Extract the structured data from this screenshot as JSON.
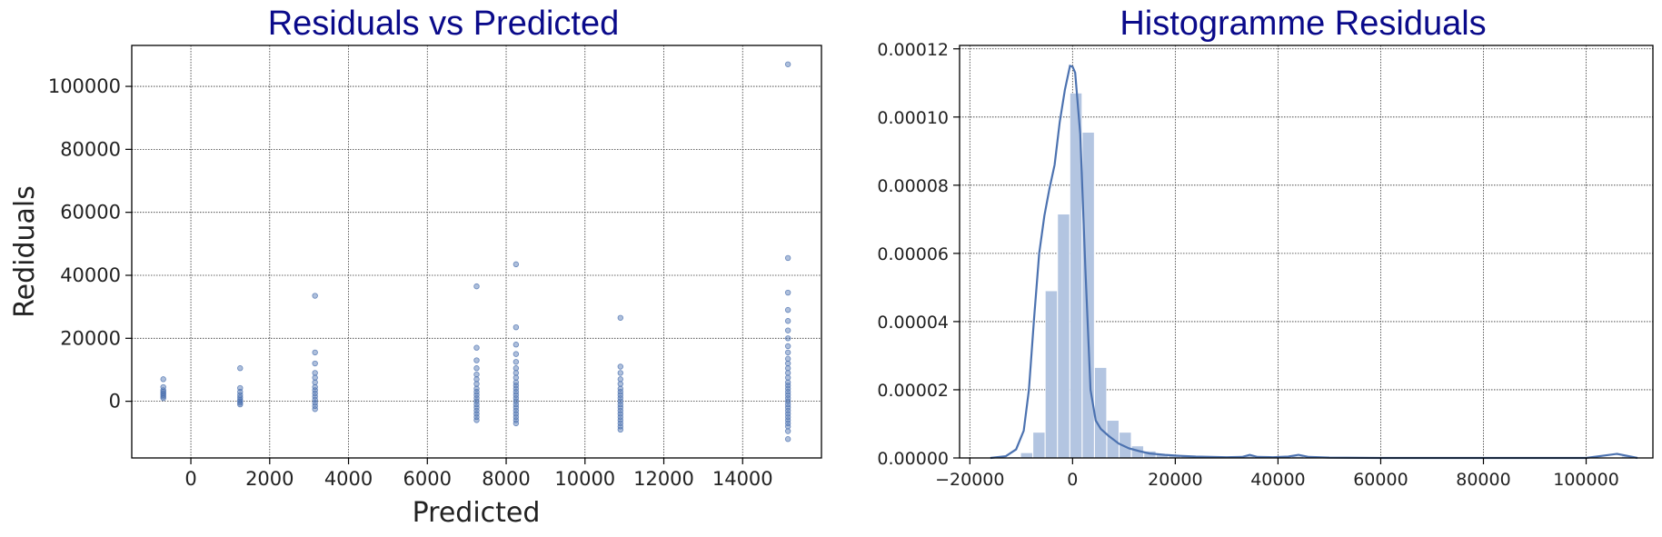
{
  "colors": {
    "title": "#0a0a8a",
    "series": "#4c72b0",
    "hist_fill": "#b3c5e1",
    "grid": "#333333",
    "axis": "#000000"
  },
  "chart_data": [
    {
      "type": "scatter",
      "title": "Residuals vs Predicted",
      "xlabel": "Predicted",
      "ylabel": "Rediduals",
      "xlim": [
        -1500,
        16000
      ],
      "ylim": [
        -18000,
        113000
      ],
      "xticks": [
        0,
        2000,
        4000,
        6000,
        8000,
        10000,
        12000,
        14000
      ],
      "xtick_labels": [
        "0",
        "2000",
        "4000",
        "6000",
        "8000",
        "10000",
        "12000",
        "14000"
      ],
      "yticks": [
        0,
        20000,
        40000,
        60000,
        80000,
        100000
      ],
      "ytick_labels": [
        "0",
        "20000",
        "40000",
        "60000",
        "80000",
        "100000"
      ],
      "grid": true,
      "series": [
        {
          "points": [
            [
              -700,
              7000
            ],
            [
              -700,
              4500
            ],
            [
              -700,
              3500
            ],
            [
              -700,
              3000
            ],
            [
              -700,
              2500
            ],
            [
              -700,
              2000
            ],
            [
              -700,
              1500
            ],
            [
              -700,
              1000
            ],
            [
              1250,
              10500
            ],
            [
              1250,
              4200
            ],
            [
              1250,
              3000
            ],
            [
              1250,
              2000
            ],
            [
              1250,
              1200
            ],
            [
              1250,
              500
            ],
            [
              1250,
              0
            ],
            [
              1250,
              -500
            ],
            [
              1250,
              -1000
            ],
            [
              3150,
              33500
            ],
            [
              3150,
              15500
            ],
            [
              3150,
              12000
            ],
            [
              3150,
              9000
            ],
            [
              3150,
              7500
            ],
            [
              3150,
              6000
            ],
            [
              3150,
              4500
            ],
            [
              3150,
              3500
            ],
            [
              3150,
              2500
            ],
            [
              3150,
              1500
            ],
            [
              3150,
              500
            ],
            [
              3150,
              -500
            ],
            [
              3150,
              -1500
            ],
            [
              3150,
              -2500
            ],
            [
              7250,
              36500
            ],
            [
              7250,
              17000
            ],
            [
              7250,
              13000
            ],
            [
              7250,
              10500
            ],
            [
              7250,
              8500
            ],
            [
              7250,
              7000
            ],
            [
              7250,
              5500
            ],
            [
              7250,
              4000
            ],
            [
              7250,
              3000
            ],
            [
              7250,
              2000
            ],
            [
              7250,
              1000
            ],
            [
              7250,
              0
            ],
            [
              7250,
              -1000
            ],
            [
              7250,
              -2000
            ],
            [
              7250,
              -3000
            ],
            [
              7250,
              -4000
            ],
            [
              7250,
              -5000
            ],
            [
              7250,
              -6000
            ],
            [
              8250,
              43500
            ],
            [
              8250,
              23500
            ],
            [
              8250,
              18000
            ],
            [
              8250,
              15000
            ],
            [
              8250,
              12500
            ],
            [
              8250,
              10500
            ],
            [
              8250,
              9000
            ],
            [
              8250,
              7500
            ],
            [
              8250,
              6000
            ],
            [
              8250,
              5000
            ],
            [
              8250,
              4000
            ],
            [
              8250,
              3000
            ],
            [
              8250,
              2000
            ],
            [
              8250,
              1000
            ],
            [
              8250,
              0
            ],
            [
              8250,
              -1000
            ],
            [
              8250,
              -2000
            ],
            [
              8250,
              -3000
            ],
            [
              8250,
              -4000
            ],
            [
              8250,
              -5000
            ],
            [
              8250,
              -6000
            ],
            [
              8250,
              -7000
            ],
            [
              10900,
              26500
            ],
            [
              10900,
              11000
            ],
            [
              10900,
              9000
            ],
            [
              10900,
              7000
            ],
            [
              10900,
              5500
            ],
            [
              10900,
              4000
            ],
            [
              10900,
              3000
            ],
            [
              10900,
              2000
            ],
            [
              10900,
              1000
            ],
            [
              10900,
              0
            ],
            [
              10900,
              -1000
            ],
            [
              10900,
              -2000
            ],
            [
              10900,
              -3000
            ],
            [
              10900,
              -4000
            ],
            [
              10900,
              -5000
            ],
            [
              10900,
              -6000
            ],
            [
              10900,
              -7000
            ],
            [
              10900,
              -8000
            ],
            [
              10900,
              -9000
            ],
            [
              15150,
              107000
            ],
            [
              15150,
              45500
            ],
            [
              15150,
              34500
            ],
            [
              15150,
              29000
            ],
            [
              15150,
              25500
            ],
            [
              15150,
              22500
            ],
            [
              15150,
              20000
            ],
            [
              15150,
              17500
            ],
            [
              15150,
              15500
            ],
            [
              15150,
              13500
            ],
            [
              15150,
              12000
            ],
            [
              15150,
              10500
            ],
            [
              15150,
              9000
            ],
            [
              15150,
              7500
            ],
            [
              15150,
              6000
            ],
            [
              15150,
              5000
            ],
            [
              15150,
              4000
            ],
            [
              15150,
              3000
            ],
            [
              15150,
              2000
            ],
            [
              15150,
              1000
            ],
            [
              15150,
              0
            ],
            [
              15150,
              -1000
            ],
            [
              15150,
              -2000
            ],
            [
              15150,
              -3000
            ],
            [
              15150,
              -4000
            ],
            [
              15150,
              -5000
            ],
            [
              15150,
              -6000
            ],
            [
              15150,
              -7000
            ],
            [
              15150,
              -8000
            ],
            [
              15150,
              -9500
            ],
            [
              15150,
              -12000
            ]
          ]
        }
      ]
    },
    {
      "type": "bar",
      "subtype": "histogram_with_kde",
      "title": "Histogramme Residuals",
      "xlabel": "",
      "ylabel": "",
      "xlim": [
        -22000,
        113000
      ],
      "ylim": [
        0,
        0.000121
      ],
      "xticks": [
        -20000,
        0,
        20000,
        40000,
        60000,
        80000,
        100000
      ],
      "xtick_labels": [
        "−20000",
        "0",
        "20000",
        "40000",
        "60000",
        "80000",
        "100000"
      ],
      "yticks": [
        0,
        2e-05,
        4e-05,
        6e-05,
        8e-05,
        0.0001,
        0.00012
      ],
      "ytick_labels": [
        "0.00000",
        "0.00002",
        "0.00004",
        "0.00006",
        "0.00008",
        "0.00010",
        "0.00012"
      ],
      "grid": true,
      "bin_width": 2400,
      "bins": [
        {
          "x0": -12500,
          "value": 3e-07
        },
        {
          "x0": -10100,
          "value": 1.5e-06
        },
        {
          "x0": -7700,
          "value": 7.5e-06
        },
        {
          "x0": -5300,
          "value": 4.9e-05
        },
        {
          "x0": -2900,
          "value": 7.15e-05
        },
        {
          "x0": -500,
          "value": 0.000107
        },
        {
          "x0": 1900,
          "value": 9.55e-05
        },
        {
          "x0": 4300,
          "value": 2.65e-05
        },
        {
          "x0": 6700,
          "value": 1.1e-05
        },
        {
          "x0": 9100,
          "value": 7.5e-06
        },
        {
          "x0": 11500,
          "value": 3.5e-06
        },
        {
          "x0": 13900,
          "value": 2e-06
        },
        {
          "x0": 16300,
          "value": 1e-06
        },
        {
          "x0": 18700,
          "value": 8e-07
        },
        {
          "x0": 21100,
          "value": 6e-07
        },
        {
          "x0": 23500,
          "value": 5e-07
        },
        {
          "x0": 25900,
          "value": 4e-07
        },
        {
          "x0": 28300,
          "value": 3e-07
        },
        {
          "x0": 33100,
          "value": 6e-07
        },
        {
          "x0": 35500,
          "value": 3e-07
        },
        {
          "x0": 42700,
          "value": 5e-07
        },
        {
          "x0": 106900,
          "value": 5e-07
        }
      ],
      "kde": {
        "x": [
          -16000,
          -13000,
          -11000,
          -9500,
          -8500,
          -7500,
          -6500,
          -5500,
          -4500,
          -3500,
          -2500,
          -1500,
          -500,
          0,
          500,
          1500,
          2500,
          3500,
          4500,
          5500,
          7000,
          9000,
          11000,
          13000,
          15000,
          18000,
          21000,
          24000,
          27000,
          30000,
          33000,
          34500,
          36000,
          39000,
          42000,
          44000,
          46000,
          50000,
          60000,
          80000,
          100000,
          106000,
          108000,
          110000
        ],
        "y": [
          0,
          5e-07,
          2.5e-06,
          8e-06,
          2e-05,
          4.1e-05,
          6e-05,
          7.1e-05,
          7.9e-05,
          8.6e-05,
          9.85e-05,
          0.000108,
          0.000115,
          0.0001148,
          0.000113,
          9.5e-05,
          5.5e-05,
          2e-05,
          1.1e-05,
          8.5e-06,
          6.5e-06,
          4.2e-06,
          2.8e-06,
          2e-06,
          1.3e-06,
          9e-07,
          6e-07,
          4e-07,
          3e-07,
          2e-07,
          3e-07,
          9e-07,
          3e-07,
          2e-07,
          4e-07,
          9e-07,
          3e-07,
          1e-07,
          0,
          0,
          0,
          1.2e-06,
          6e-07,
          0
        ]
      }
    }
  ]
}
